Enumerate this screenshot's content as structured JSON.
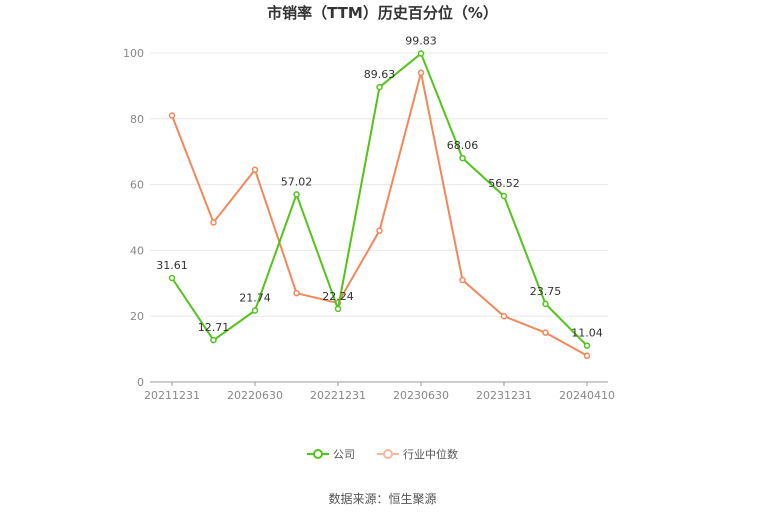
{
  "chart_data": {
    "type": "line",
    "title": "市销率（TTM）历史百分位（%）",
    "xlabel": "",
    "ylabel": "",
    "ylim": [
      0,
      100
    ],
    "yticks": [
      0,
      20,
      40,
      60,
      80,
      100
    ],
    "x_tick_labels": [
      "20211231",
      "20220630",
      "20221231",
      "20230630",
      "20231231",
      "20240410"
    ],
    "x_tick_indices": [
      0,
      2,
      4,
      6,
      8,
      10
    ],
    "x_count": 11,
    "grid": true,
    "legend_position": "bottom",
    "series": [
      {
        "name": "公司",
        "color": "#52c41a",
        "values": [
          31.61,
          12.71,
          21.74,
          57.02,
          22.24,
          89.63,
          99.83,
          68.06,
          56.52,
          23.75,
          11.04
        ],
        "labels": [
          "31.61",
          "12.71",
          "21.74",
          "57.02",
          "22.24",
          "89.63",
          "99.83",
          "68.06",
          "56.52",
          "23.75",
          "11.04"
        ]
      },
      {
        "name": "行业中位数",
        "color": "#f4875a",
        "values": [
          81,
          48.5,
          64.5,
          27,
          24,
          46,
          94,
          31,
          20,
          15,
          8
        ]
      }
    ]
  },
  "source": "数据来源：恒生聚源"
}
